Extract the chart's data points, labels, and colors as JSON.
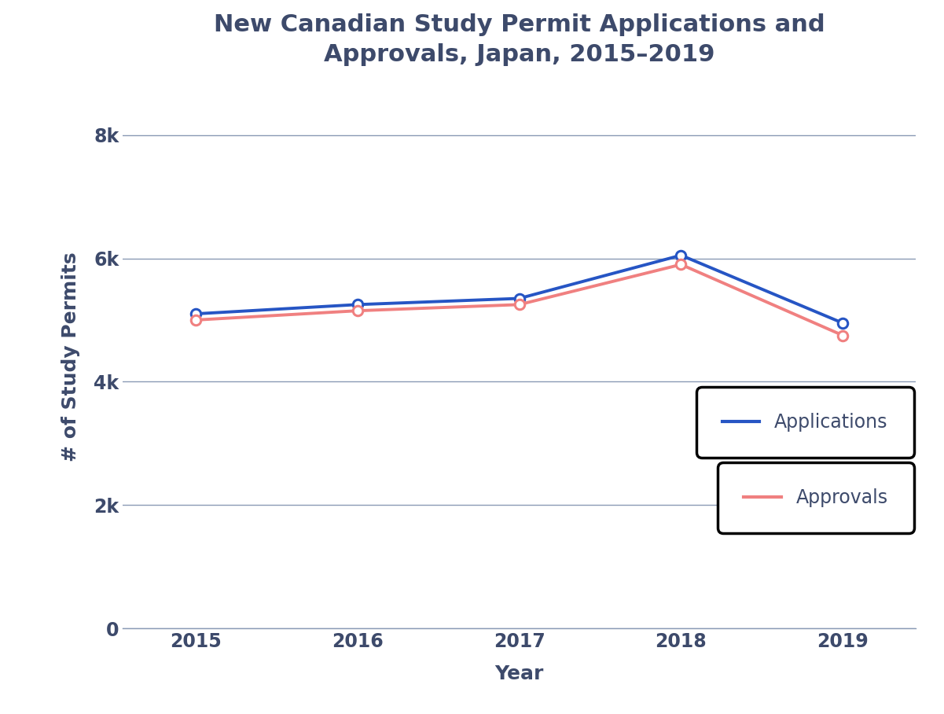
{
  "title": "New Canadian Study Permit Applications and\nApprovals, Japan, 2015–2019",
  "xlabel": "Year",
  "ylabel": "# of Study Permits",
  "years": [
    2015,
    2016,
    2017,
    2018,
    2019
  ],
  "applications": [
    5100,
    5250,
    5350,
    6050,
    4950
  ],
  "approvals": [
    5000,
    5150,
    5250,
    5900,
    4750
  ],
  "app_color": "#2655c4",
  "appr_color": "#f08080",
  "text_color": "#3d4a6b",
  "ylim": [
    0,
    8800
  ],
  "yticks": [
    0,
    2000,
    4000,
    6000,
    8000
  ],
  "ytick_labels": [
    "0",
    "2k",
    "4k",
    "6k",
    "8k"
  ],
  "background_color": "#ffffff",
  "grid_color": "#8a9ab5",
  "title_fontsize": 22,
  "axis_label_fontsize": 18,
  "tick_fontsize": 17,
  "legend_fontsize": 17,
  "line_width": 2.8,
  "marker_size": 9
}
